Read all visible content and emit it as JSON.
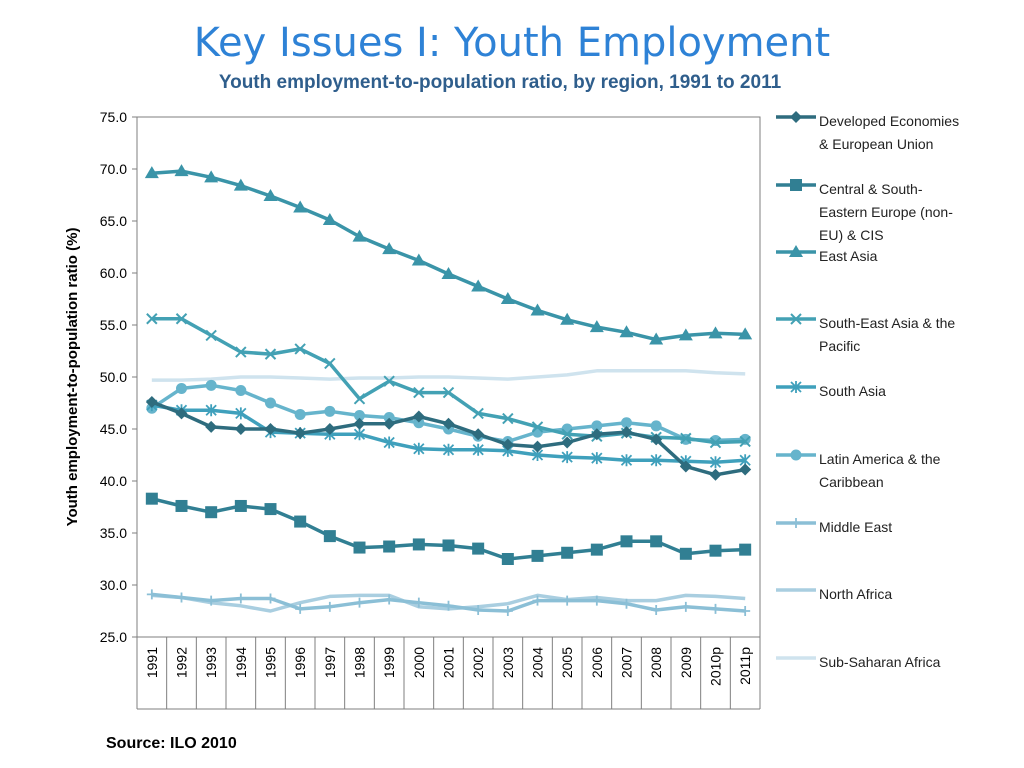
{
  "page_title": "Key Issues I: Youth Employment",
  "source_note": "Source: ILO 2010",
  "chart_data": {
    "type": "line",
    "title": "Youth employment-to-population ratio, by region, 1991 to 2011",
    "ylabel": "Youth employment-to-population ratio (%)",
    "xlabel": "",
    "ylim": [
      25,
      75
    ],
    "yticks": [
      "25.0",
      "30.0",
      "35.0",
      "40.0",
      "45.0",
      "50.0",
      "55.0",
      "60.0",
      "65.0",
      "70.0",
      "75.0"
    ],
    "grid": false,
    "legend_position": "right",
    "categories": [
      "1991",
      "1992",
      "1993",
      "1994",
      "1995",
      "1996",
      "1997",
      "1998",
      "1999",
      "2000",
      "2001",
      "2002",
      "2003",
      "2004",
      "2005",
      "2006",
      "2007",
      "2008",
      "2009",
      "2010p",
      "2011p"
    ],
    "series": [
      {
        "name": "Developed Economies & European Union",
        "legend_lines": [
          "Developed Economies",
          "& European Union"
        ],
        "marker": "diamond",
        "color": "#2E6C7E",
        "values": [
          47.6,
          46.5,
          45.2,
          45.0,
          45.0,
          44.6,
          45.0,
          45.5,
          45.5,
          46.2,
          45.5,
          44.5,
          43.5,
          43.3,
          43.7,
          44.5,
          44.7,
          44.0,
          41.4,
          40.6,
          41.1
        ]
      },
      {
        "name": "Central & South-Eastern Europe (non-EU) & CIS",
        "legend_lines": [
          "Central & South-",
          "Eastern Europe (non-",
          "EU) & CIS"
        ],
        "marker": "square",
        "color": "#317F93",
        "values": [
          38.3,
          37.6,
          37.0,
          37.6,
          37.3,
          36.1,
          34.7,
          33.6,
          33.7,
          33.9,
          33.8,
          33.5,
          32.5,
          32.8,
          33.1,
          33.4,
          34.2,
          34.2,
          33.0,
          33.3,
          33.4
        ]
      },
      {
        "name": "East Asia",
        "legend_lines": [
          "East Asia"
        ],
        "marker": "triangle",
        "color": "#3A94A8",
        "values": [
          69.6,
          69.8,
          69.2,
          68.4,
          67.4,
          66.3,
          65.1,
          63.5,
          62.3,
          61.2,
          59.9,
          58.7,
          57.5,
          56.4,
          55.5,
          54.8,
          54.3,
          53.6,
          54.0,
          54.2,
          54.1
        ]
      },
      {
        "name": "South-East Asia & the Pacific",
        "legend_lines": [
          "South-East Asia & the",
          "Pacific"
        ],
        "marker": "x",
        "color": "#43A1B4",
        "values": [
          55.6,
          55.6,
          54.0,
          52.4,
          52.2,
          52.7,
          51.3,
          47.9,
          49.6,
          48.5,
          48.5,
          46.5,
          46.0,
          45.2,
          44.5,
          44.3,
          44.6,
          44.2,
          44.1,
          43.7,
          43.8
        ]
      },
      {
        "name": "South Asia",
        "legend_lines": [
          "South Asia"
        ],
        "marker": "star",
        "color": "#3FA0BC",
        "values": [
          47.3,
          46.8,
          46.8,
          46.5,
          44.7,
          44.6,
          44.5,
          44.5,
          43.7,
          43.1,
          43.0,
          43.0,
          42.9,
          42.5,
          42.3,
          42.2,
          42.0,
          42.0,
          41.9,
          41.8,
          42.0
        ]
      },
      {
        "name": "Latin America & the Caribbean",
        "legend_lines": [
          "Latin America & the",
          "Caribbean"
        ],
        "marker": "circle",
        "color": "#66B4CC",
        "values": [
          47.0,
          48.9,
          49.2,
          48.7,
          47.5,
          46.4,
          46.7,
          46.3,
          46.1,
          45.6,
          45.0,
          44.3,
          43.8,
          44.7,
          45.0,
          45.3,
          45.6,
          45.3,
          44.0,
          43.9,
          44.0
        ]
      },
      {
        "name": "Middle East",
        "legend_lines": [
          "Middle East"
        ],
        "marker": "plus",
        "color": "#8BBFD6",
        "values": [
          29.1,
          28.8,
          28.5,
          28.7,
          28.7,
          27.7,
          27.9,
          28.3,
          28.6,
          28.3,
          28.0,
          27.6,
          27.5,
          28.5,
          28.5,
          28.5,
          28.2,
          27.6,
          27.9,
          27.7,
          27.5
        ]
      },
      {
        "name": "North Africa",
        "legend_lines": [
          "North Africa"
        ],
        "marker": "none",
        "color": "#A9CEE0",
        "values": [
          29.0,
          28.8,
          28.3,
          28.0,
          27.5,
          28.3,
          28.9,
          29.0,
          29.0,
          27.9,
          27.7,
          27.9,
          28.2,
          29.0,
          28.6,
          28.8,
          28.5,
          28.5,
          29.0,
          28.9,
          28.7
        ]
      },
      {
        "name": "Sub-Saharan Africa",
        "legend_lines": [
          "Sub-Saharan Africa"
        ],
        "marker": "none",
        "color": "#CFE3EE",
        "values": [
          49.7,
          49.7,
          49.8,
          50.0,
          50.0,
          49.9,
          49.8,
          49.9,
          49.9,
          50.0,
          50.0,
          49.9,
          49.8,
          50.0,
          50.2,
          50.6,
          50.6,
          50.6,
          50.6,
          50.4,
          50.3
        ]
      }
    ]
  }
}
